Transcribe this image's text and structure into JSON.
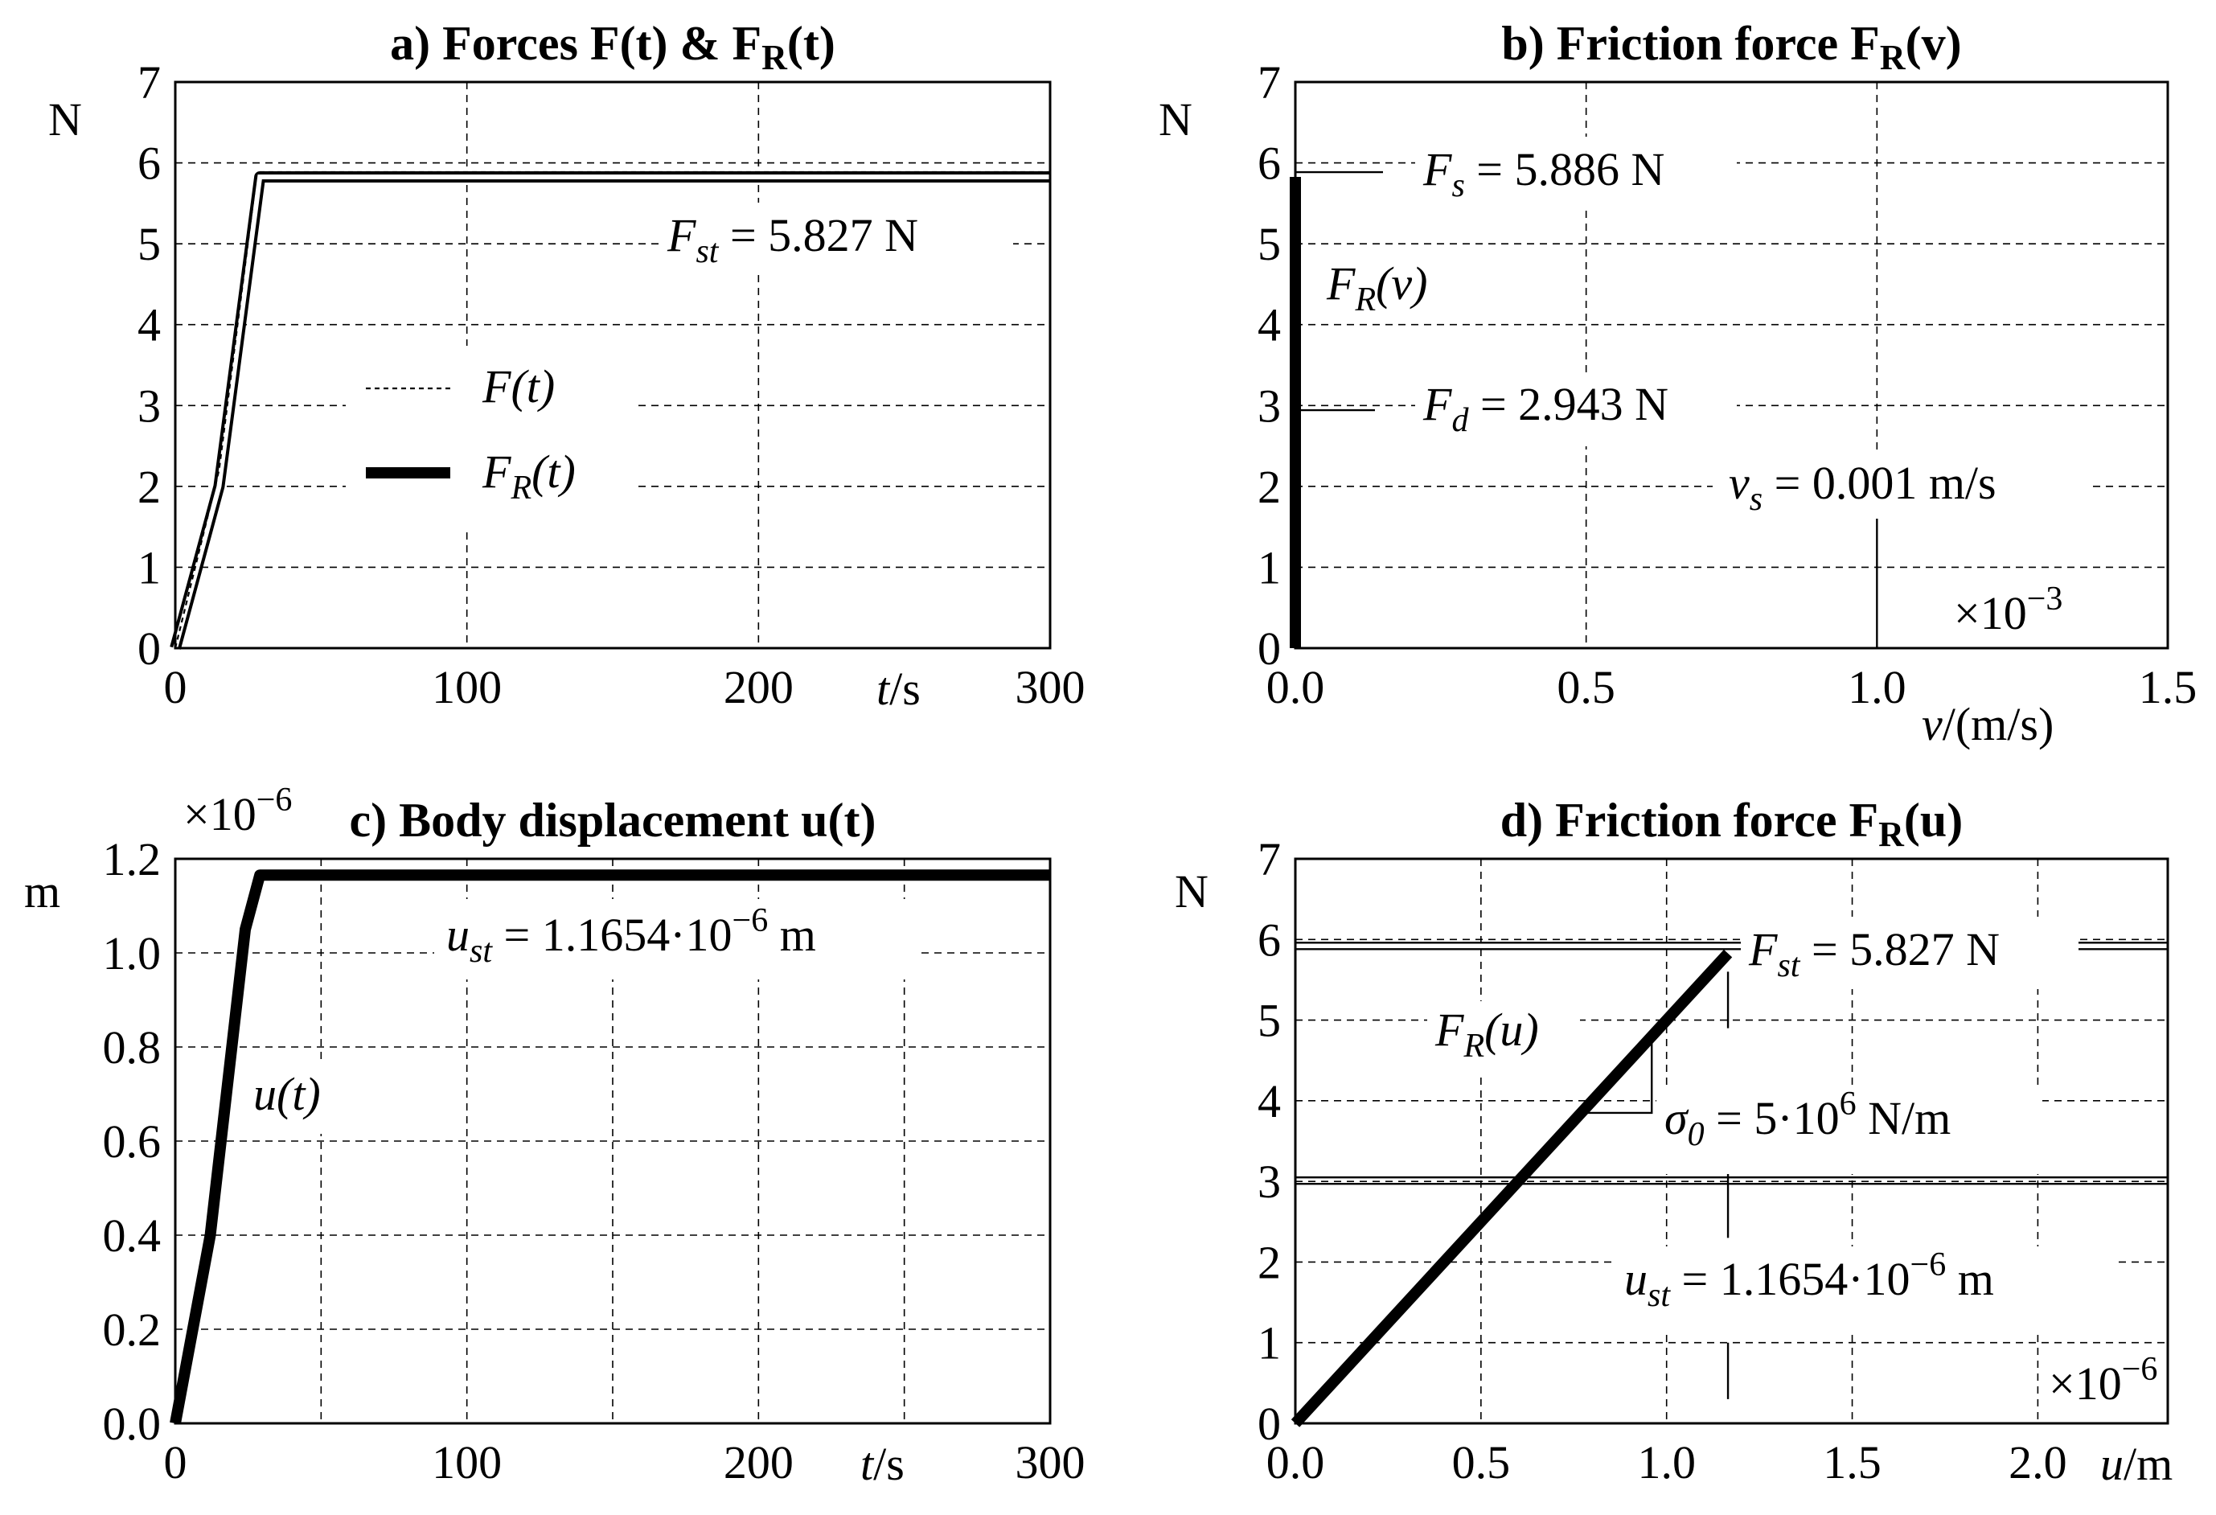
{
  "chart_data": [
    {
      "id": "a",
      "type": "line",
      "title": "a) Forces F(t) & F",
      "title_sub": "R",
      "title_end": "(t)",
      "ylabel": "N",
      "xlabel_var": "t",
      "xlabel_unit": "/s",
      "xlim": [
        0,
        300
      ],
      "ylim": [
        0,
        7
      ],
      "xticks": [
        0,
        100,
        200,
        300
      ],
      "yticks": [
        0,
        1,
        2,
        3,
        4,
        5,
        6,
        7
      ],
      "xgrid": [
        100,
        200
      ],
      "ygrid": [
        1,
        2,
        3,
        4,
        5,
        6
      ],
      "series": [
        {
          "name": "F(t)",
          "style": "dashed",
          "x": [
            0,
            15,
            28,
            300
          ],
          "y": [
            0,
            2.2,
            5.886,
            5.886
          ]
        },
        {
          "name": "F_R(t)",
          "style": "thick",
          "x": [
            0,
            15,
            29,
            300
          ],
          "y": [
            0,
            2.0,
            5.827,
            5.827
          ]
        }
      ],
      "annotation": {
        "sym": "F",
        "sub": "st",
        "text": " = 5.827 N",
        "x": 215,
        "y": 5.0
      },
      "legend": {
        "position": "center-left",
        "items": [
          {
            "sym": "F",
            "sub": "",
            "arg": "(t)"
          },
          {
            "sym": "F",
            "sub": "R",
            "arg": "(t)"
          }
        ]
      }
    },
    {
      "id": "b",
      "type": "line",
      "title": "b) Friction force F",
      "title_sub": "R",
      "title_end": "(v)",
      "ylabel": "N",
      "xlabel_var": "v",
      "xlabel_unit": "/(m/s)",
      "xlim": [
        0,
        1.5
      ],
      "ylim": [
        0,
        7
      ],
      "xticks": [
        0.0,
        0.5,
        1.0,
        1.5
      ],
      "xtick_labels": [
        "0.0",
        "0.5",
        "1.0",
        "1.5"
      ],
      "yticks": [
        0,
        1,
        2,
        3,
        4,
        5,
        6,
        7
      ],
      "xgrid": [
        0.5,
        1.0
      ],
      "ygrid": [
        1,
        2,
        3,
        4,
        5,
        6
      ],
      "multiplier": "×10",
      "multiplier_exp": "−3",
      "series": [
        {
          "name": "F_R(v)",
          "style": "thick",
          "x": [
            0,
            0
          ],
          "y": [
            0,
            5.827
          ]
        }
      ],
      "markers": [
        {
          "sym": "F",
          "sub": "s",
          "text": " = 5.886 N",
          "value": 5.886
        },
        {
          "sym": "F",
          "sub": "d",
          "text": " = 2.943 N",
          "value": 2.943
        }
      ],
      "curve_label": {
        "sym": "F",
        "sub": "R",
        "arg": "(v)"
      },
      "vs_label": {
        "sym": "v",
        "sub": "s",
        "text": " = 0.001 m/s",
        "value": 1.0
      }
    },
    {
      "id": "c",
      "type": "line",
      "title": "c) Body displacement u(t)",
      "ylabel": "m",
      "xlabel_var": "t",
      "xlabel_unit": "/s",
      "xlim": [
        0,
        300
      ],
      "ylim": [
        0,
        1.2
      ],
      "xticks": [
        0,
        100,
        200,
        300
      ],
      "yticks": [
        0.0,
        0.2,
        0.4,
        0.6,
        0.8,
        1.0,
        1.2
      ],
      "ytick_labels": [
        "0.0",
        "0.2",
        "0.4",
        "0.6",
        "0.8",
        "1.0",
        "1.2"
      ],
      "xgrid": [
        50,
        100,
        150,
        200,
        250
      ],
      "ygrid": [
        0.2,
        0.4,
        0.6,
        0.8,
        1.0
      ],
      "multiplier": "×10",
      "multiplier_exp": "−6",
      "series": [
        {
          "name": "u(t)",
          "style": "thick",
          "x": [
            0,
            12,
            24,
            29,
            300
          ],
          "y": [
            0,
            0.4,
            1.05,
            1.1654,
            1.1654
          ]
        }
      ],
      "annotation": {
        "sym": "u",
        "sub": "st",
        "text": " = 1.1654·10",
        "exp": "−6",
        "tail": " m"
      },
      "curve_label": {
        "sym": "u",
        "sub": "",
        "arg": "(t)"
      }
    },
    {
      "id": "d",
      "type": "line",
      "title": "d) Friction force F",
      "title_sub": "R",
      "title_end": "(u)",
      "ylabel": "N",
      "xlabel_var": "u",
      "xlabel_unit": "/m",
      "xlim": [
        0,
        2.35
      ],
      "ylim": [
        0,
        7
      ],
      "xticks": [
        0.0,
        0.5,
        1.0,
        1.5,
        2.0
      ],
      "xtick_labels": [
        "0.0",
        "0.5",
        "1.0",
        "1.5",
        "2.0"
      ],
      "yticks": [
        0,
        1,
        2,
        3,
        4,
        5,
        6,
        7
      ],
      "xgrid": [
        0.5,
        1.0,
        1.5,
        2.0
      ],
      "ygrid": [
        1,
        2,
        3,
        4,
        5,
        6
      ],
      "multiplier": "×10",
      "multiplier_exp": "−6",
      "series": [
        {
          "name": "F_R(u)",
          "style": "thick",
          "x": [
            0,
            1.1654
          ],
          "y": [
            0,
            5.827
          ]
        }
      ],
      "hlines": [
        5.886,
        5.827,
        2.943,
        3.0
      ],
      "fst_label": {
        "sym": "F",
        "sub": "st",
        "text": " = 5.827 N"
      },
      "sigma_label": {
        "sym": "σ",
        "sub": "0",
        "text": " = 5·10",
        "exp": "6",
        "tail": " N/m"
      },
      "ust_label": {
        "sym": "u",
        "sub": "st",
        "text": " = 1.1654·10",
        "exp": "−6",
        "tail": " m"
      },
      "curve_label": {
        "sym": "F",
        "sub": "R",
        "arg": "(u)"
      }
    }
  ]
}
